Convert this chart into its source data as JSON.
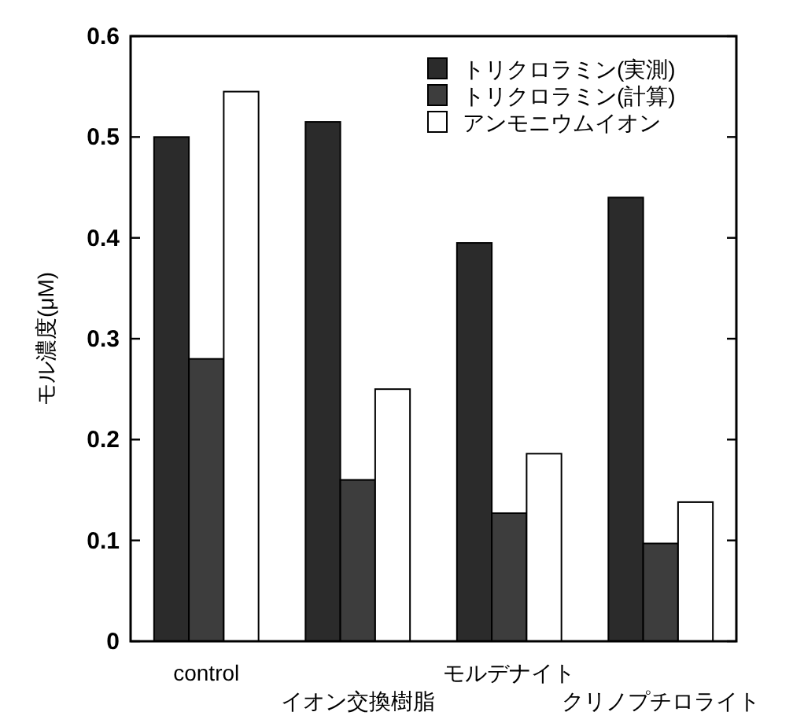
{
  "chart_data": {
    "type": "bar",
    "ylabel": "モル濃度(μM)",
    "categories": [
      "control",
      "イオン交換樹脂",
      "モルデナイト",
      "クリノプチロライト"
    ],
    "series": [
      {
        "name": "トリクロラミン(実測)",
        "color": "#2b2b2b",
        "values": [
          0.5,
          0.515,
          0.395,
          0.44
        ]
      },
      {
        "name": "トリクロラミン(計算)",
        "color": "#3d3d3d",
        "values": [
          0.28,
          0.16,
          0.127,
          0.097
        ]
      },
      {
        "name": "アンモニウムイオン",
        "color": "#ffffff",
        "values": [
          0.545,
          0.25,
          0.186,
          0.138
        ]
      }
    ],
    "ylim": [
      0,
      0.6
    ],
    "yticks": [
      0,
      0.1,
      0.2,
      0.3,
      0.4,
      0.5,
      0.6
    ],
    "grid": false,
    "legend": "top right"
  }
}
